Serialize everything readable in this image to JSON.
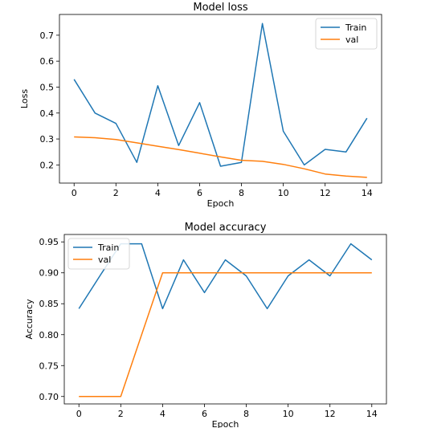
{
  "chart_data": [
    {
      "type": "line",
      "title": "Model loss",
      "xlabel": "Epoch",
      "ylabel": "Loss",
      "x": [
        0,
        1,
        2,
        3,
        4,
        5,
        6,
        7,
        8,
        9,
        10,
        11,
        12,
        13,
        14
      ],
      "series": [
        {
          "name": "Train",
          "color": "#1f77b4",
          "values": [
            0.53,
            0.4,
            0.36,
            0.21,
            0.505,
            0.275,
            0.44,
            0.195,
            0.21,
            0.745,
            0.33,
            0.2,
            0.26,
            0.25,
            0.38
          ]
        },
        {
          "name": "val",
          "color": "#ff7f0e",
          "values": [
            0.308,
            0.305,
            0.298,
            0.285,
            0.272,
            0.259,
            0.245,
            0.231,
            0.218,
            0.214,
            0.202,
            0.185,
            0.165,
            0.157,
            0.152
          ]
        }
      ],
      "xlim": [
        -0.7,
        14.7
      ],
      "ylim": [
        0.13,
        0.78
      ],
      "xticks": [
        0,
        2,
        4,
        6,
        8,
        10,
        12,
        14
      ],
      "yticks": [
        0.2,
        0.3,
        0.4,
        0.5,
        0.6,
        0.7
      ],
      "ytick_labels": [
        "0.2",
        "0.3",
        "0.4",
        "0.5",
        "0.6",
        "0.7"
      ],
      "legend": "upper-right",
      "grid": false
    },
    {
      "type": "line",
      "title": "Model accuracy",
      "xlabel": "Epoch",
      "ylabel": "Accuracy",
      "x": [
        0,
        1,
        2,
        3,
        4,
        5,
        6,
        7,
        8,
        9,
        10,
        11,
        12,
        13,
        14
      ],
      "series": [
        {
          "name": "Train",
          "color": "#1f77b4",
          "values": [
            0.842,
            0.895,
            0.947,
            0.947,
            0.842,
            0.921,
            0.868,
            0.921,
            0.895,
            0.842,
            0.895,
            0.921,
            0.895,
            0.947,
            0.921
          ]
        },
        {
          "name": "val",
          "color": "#ff7f0e",
          "values": [
            0.7,
            0.7,
            0.7,
            0.8,
            0.9,
            0.9,
            0.9,
            0.9,
            0.9,
            0.9,
            0.9,
            0.9,
            0.9,
            0.9,
            0.9
          ]
        }
      ],
      "xlim": [
        -0.7,
        14.7
      ],
      "ylim": [
        0.688,
        0.962
      ],
      "xticks": [
        0,
        2,
        4,
        6,
        8,
        10,
        12,
        14
      ],
      "yticks": [
        0.7,
        0.75,
        0.8,
        0.85,
        0.9,
        0.95
      ],
      "ytick_labels": [
        "0.70",
        "0.75",
        "0.80",
        "0.85",
        "0.90",
        "0.95"
      ],
      "legend": "upper-left",
      "grid": false
    }
  ]
}
